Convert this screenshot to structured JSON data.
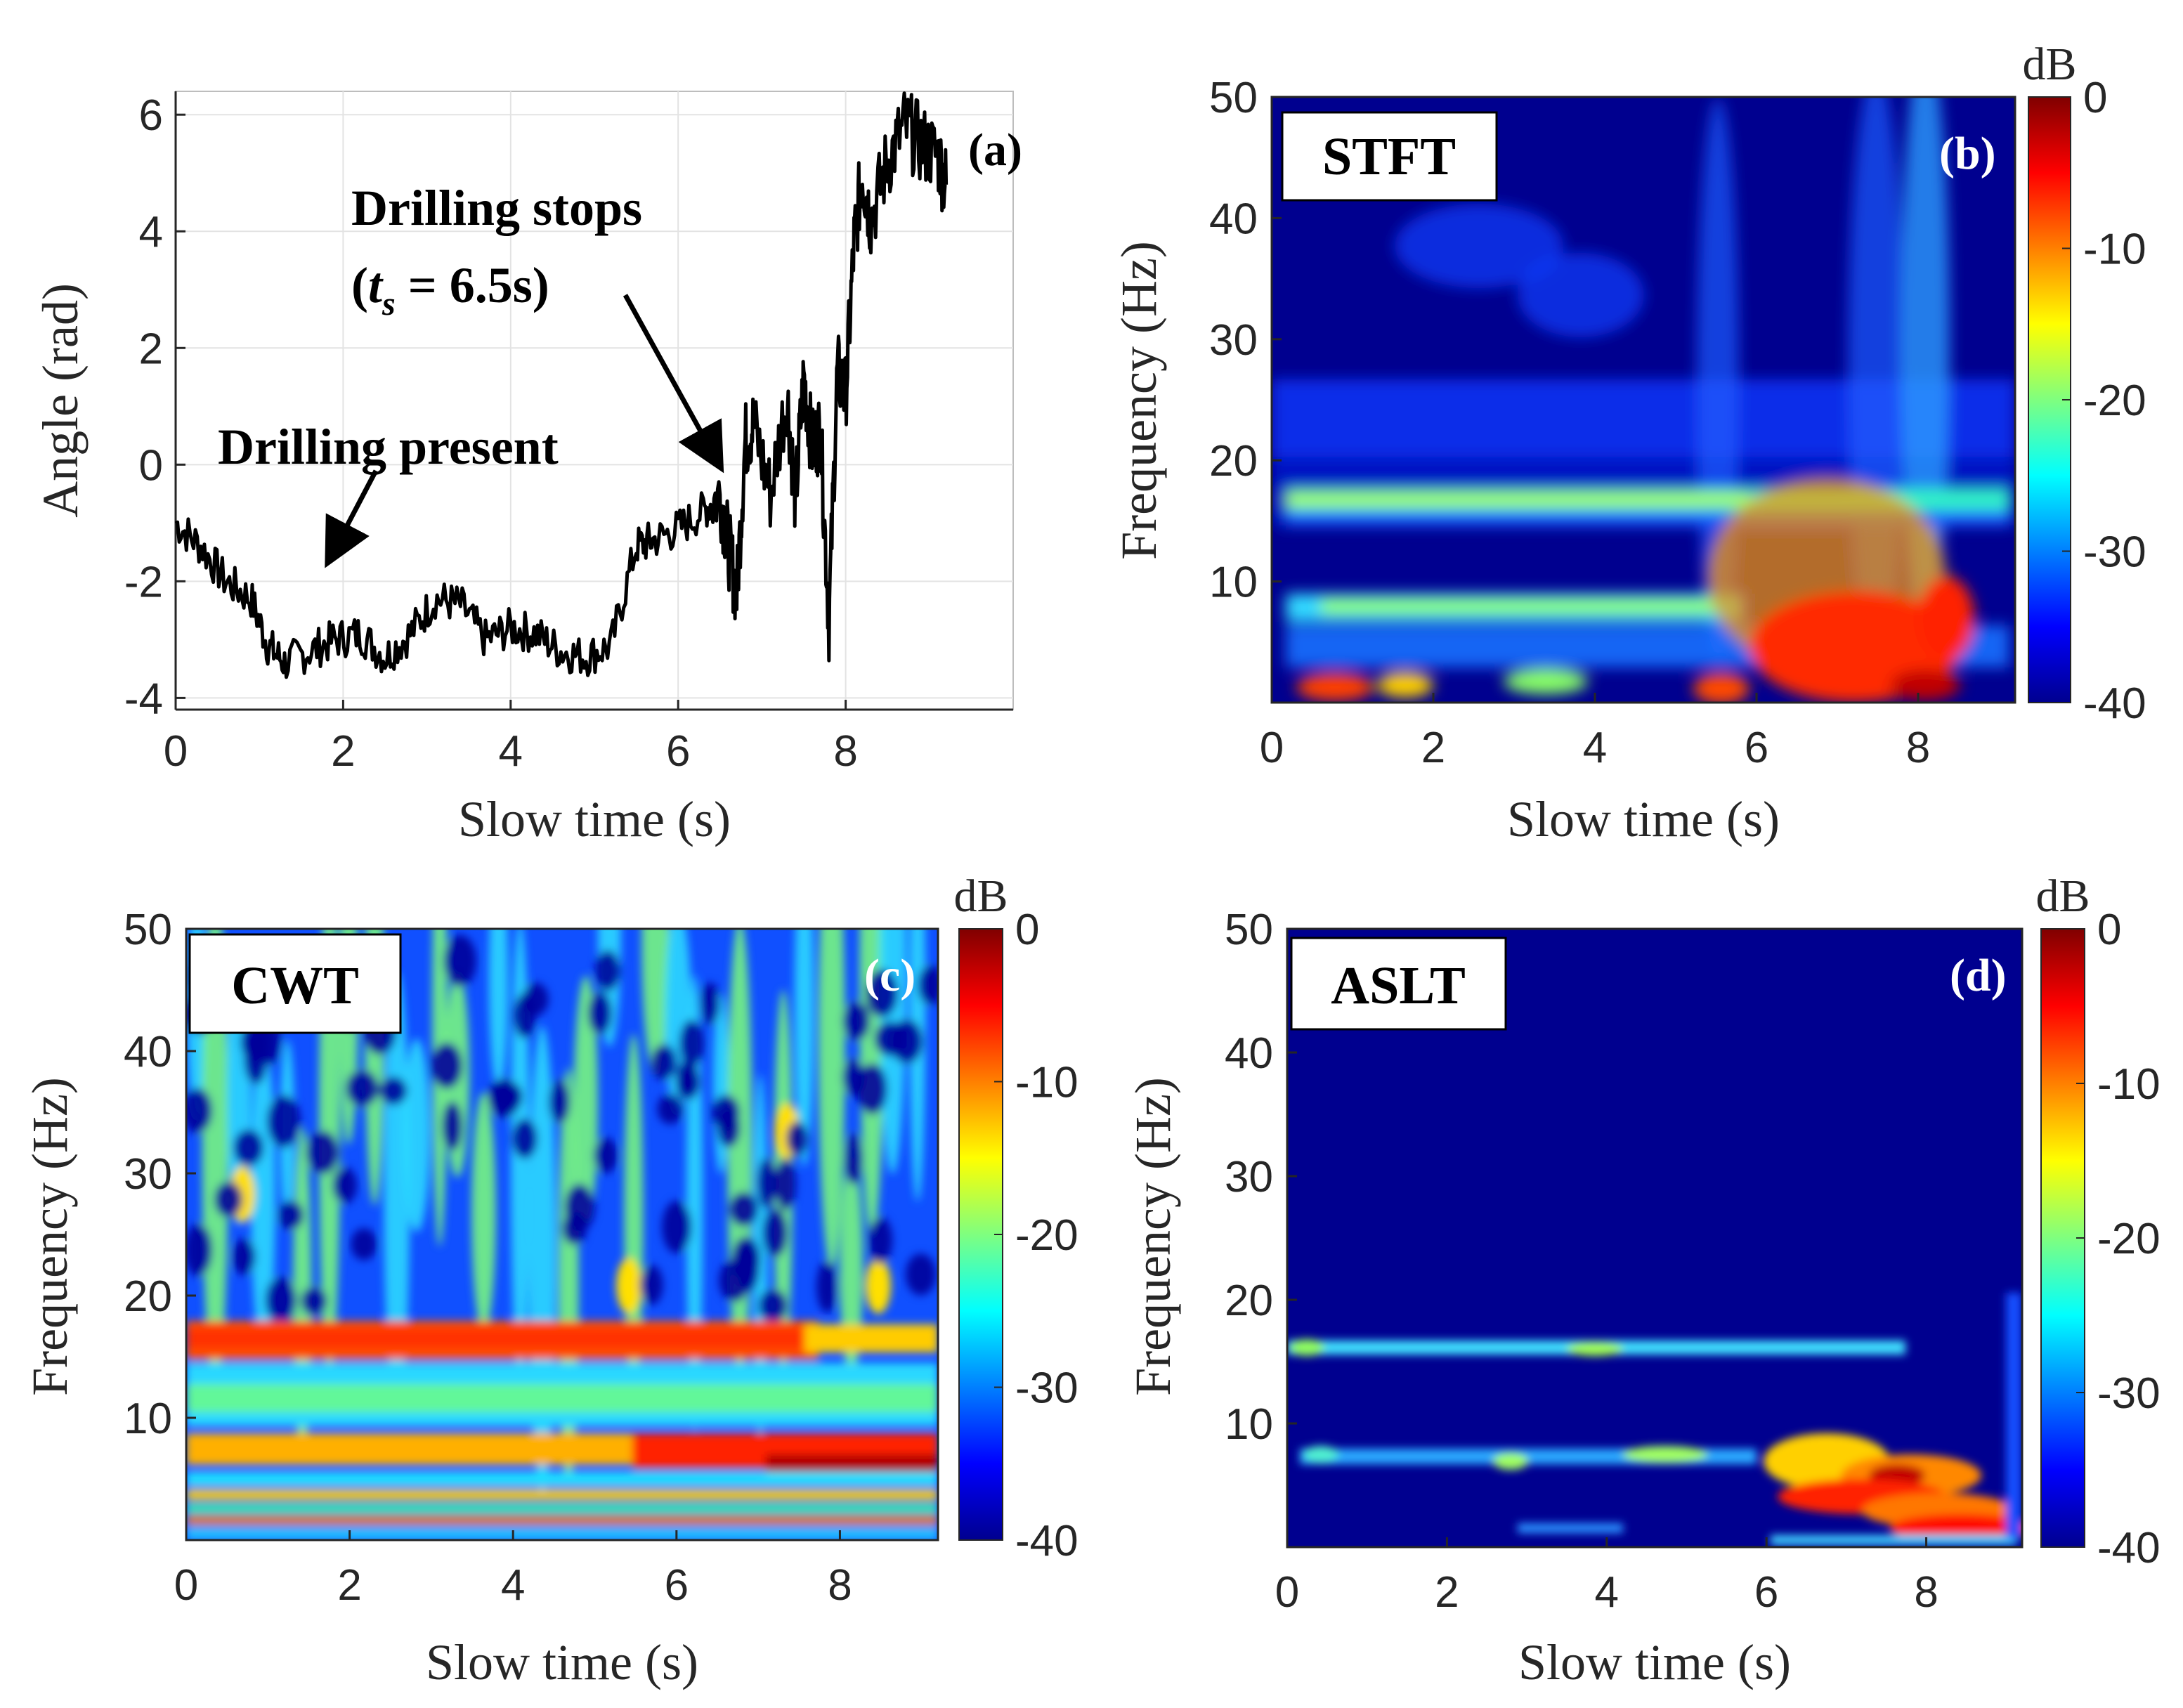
{
  "chart_data": [
    {
      "type": "line",
      "panel": "(a)",
      "xlabel": "Slow time (s)",
      "ylabel": "Angle (rad)",
      "xlim": [
        0,
        10
      ],
      "ylim": [
        -4.2,
        6.4
      ],
      "xticks": [
        "0",
        "2",
        "4",
        "6",
        "8"
      ],
      "yticks": [
        "-4",
        "-2",
        "0",
        "2",
        "4",
        "6"
      ],
      "annotations": {
        "present": "Drilling present",
        "stops_line1": "Drilling stops",
        "stops_line2_open": "(",
        "stops_var": "t",
        "stops_sub": "s",
        "stops_rest": " = 6.5s)"
      },
      "series": [
        {
          "name": "angle",
          "x": [
            0,
            0.3,
            0.6,
            0.9,
            1.1,
            1.3,
            1.6,
            1.9,
            2.2,
            2.5,
            2.8,
            3.1,
            3.4,
            3.7,
            4.0,
            4.3,
            4.6,
            4.9,
            5.2,
            5.5,
            5.7,
            6.0,
            6.3,
            6.5,
            6.6,
            6.7,
            6.8,
            6.9,
            7.1,
            7.3,
            7.4,
            7.5,
            7.6,
            7.7,
            7.8,
            7.9,
            8.0,
            8.1,
            8.2,
            8.3,
            8.5,
            8.7,
            8.9,
            9.1,
            9.2
          ],
          "y": [
            -1.0,
            -1.4,
            -2.0,
            -2.3,
            -3.1,
            -3.4,
            -3.2,
            -3.0,
            -2.9,
            -3.3,
            -2.9,
            -2.3,
            -2.4,
            -3.0,
            -2.8,
            -2.9,
            -3.2,
            -3.3,
            -3.1,
            -1.4,
            -1.3,
            -1.1,
            -0.8,
            -0.5,
            -1.4,
            -2.2,
            0.4,
            0.7,
            -0.5,
            1.2,
            -0.6,
            1.5,
            0.3,
            0.6,
            -2.7,
            1.6,
            1.2,
            3.8,
            5.0,
            4.2,
            5.2,
            5.8,
            5.5,
            5.3,
            4.8
          ]
        }
      ]
    },
    {
      "type": "heatmap",
      "panel": "(b)",
      "method": "STFT",
      "xlabel": "Slow time (s)",
      "ylabel": "Frequency (Hz)",
      "xlim": [
        0,
        9.2
      ],
      "ylim": [
        0,
        50
      ],
      "xticks": [
        "0",
        "2",
        "4",
        "6",
        "8"
      ],
      "yticks": [
        "10",
        "20",
        "30",
        "40",
        "50"
      ],
      "colorbar": {
        "label": "dB",
        "range": [
          -40,
          0
        ],
        "ticks": [
          "0",
          "-10",
          "-20",
          "-30",
          "-40"
        ]
      }
    },
    {
      "type": "heatmap",
      "panel": "(c)",
      "method": "CWT",
      "xlabel": "Slow time (s)",
      "ylabel": "Frequency (Hz)",
      "xlim": [
        0,
        9.2
      ],
      "ylim": [
        0,
        50
      ],
      "xticks": [
        "0",
        "2",
        "4",
        "6",
        "8"
      ],
      "yticks": [
        "10",
        "20",
        "30",
        "40",
        "50"
      ],
      "colorbar": {
        "label": "dB",
        "range": [
          -40,
          0
        ],
        "ticks": [
          "0",
          "-10",
          "-20",
          "-30",
          "-40"
        ]
      }
    },
    {
      "type": "heatmap",
      "panel": "(d)",
      "method": "ASLT",
      "xlabel": "Slow time (s)",
      "ylabel": "Frequency (Hz)",
      "xlim": [
        0,
        9.2
      ],
      "ylim": [
        0,
        50
      ],
      "xticks": [
        "0",
        "2",
        "4",
        "6",
        "8"
      ],
      "yticks": [
        "10",
        "20",
        "30",
        "40",
        "50"
      ],
      "colorbar": {
        "label": "dB",
        "range": [
          -40,
          0
        ],
        "ticks": [
          "0",
          "-10",
          "-20",
          "-30",
          "-40"
        ]
      }
    }
  ]
}
